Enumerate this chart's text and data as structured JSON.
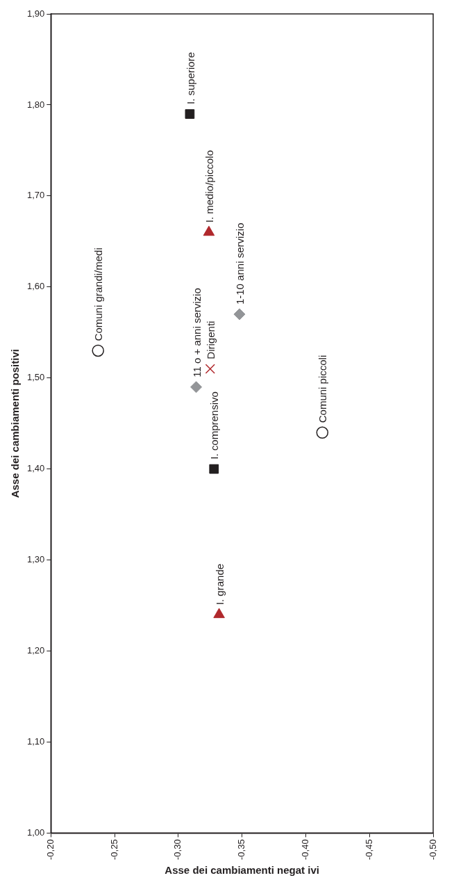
{
  "chart_data": {
    "type": "scatter",
    "xlabel": "Asse dei cambiamenti negat ivi",
    "ylabel": "Asse dei cambiamenti positivi",
    "xlim": [
      -0.2,
      -0.5
    ],
    "xticks": [
      {
        "value": -0.2,
        "label": "-0,20"
      },
      {
        "value": -0.25,
        "label": "-0,25"
      },
      {
        "value": -0.3,
        "label": "-0,30"
      },
      {
        "value": -0.35,
        "label": "-0,35"
      },
      {
        "value": -0.4,
        "label": "-0,40"
      },
      {
        "value": -0.45,
        "label": "-0,45"
      },
      {
        "value": -0.5,
        "label": "-0,50"
      }
    ],
    "ylim": [
      1.0,
      1.9
    ],
    "yticks": [
      {
        "value": 1.0,
        "label": "1,00"
      },
      {
        "value": 1.1,
        "label": "1,10"
      },
      {
        "value": 1.2,
        "label": "1,20"
      },
      {
        "value": 1.3,
        "label": "1,30"
      },
      {
        "value": 1.4,
        "label": "1,40"
      },
      {
        "value": 1.5,
        "label": "1,50"
      },
      {
        "value": 1.6,
        "label": "1,60"
      },
      {
        "value": 1.7,
        "label": "1,70"
      },
      {
        "value": 1.8,
        "label": "1,80"
      },
      {
        "value": 1.9,
        "label": "1,90"
      }
    ],
    "grid": false,
    "legend": false,
    "series": [
      {
        "name": "I. superiore",
        "color": "#231f20",
        "marker": "square",
        "x": [
          -0.309
        ],
        "values": [
          1.79
        ]
      },
      {
        "name": "I. medio/piccolo",
        "color": "#b0282c",
        "marker": "triangle",
        "x": [
          -0.324
        ],
        "values": [
          1.66
        ]
      },
      {
        "name": "Comuni grandi/medi",
        "color": "#231f20",
        "marker": "circle",
        "x": [
          -0.237
        ],
        "values": [
          1.53
        ]
      },
      {
        "name": "1-10 anni servizio",
        "color": "#939598",
        "marker": "diamond",
        "x": [
          -0.348
        ],
        "values": [
          1.57
        ]
      },
      {
        "name": "Dirigenti",
        "color": "#b0282c",
        "marker": "cross",
        "x": [
          -0.325
        ],
        "values": [
          1.51
        ]
      },
      {
        "name": "11 o + anni servizio",
        "color": "#939598",
        "marker": "diamond",
        "x": [
          -0.314
        ],
        "values": [
          1.49
        ]
      },
      {
        "name": "Comuni piccoli",
        "color": "#231f20",
        "marker": "circle",
        "x": [
          -0.413
        ],
        "values": [
          1.44
        ]
      },
      {
        "name": "I. comprensivo",
        "color": "#231f20",
        "marker": "square",
        "x": [
          -0.328
        ],
        "values": [
          1.4
        ]
      },
      {
        "name": "I. grande",
        "color": "#b0282c",
        "marker": "triangle",
        "x": [
          -0.332
        ],
        "values": [
          1.24
        ]
      }
    ]
  }
}
